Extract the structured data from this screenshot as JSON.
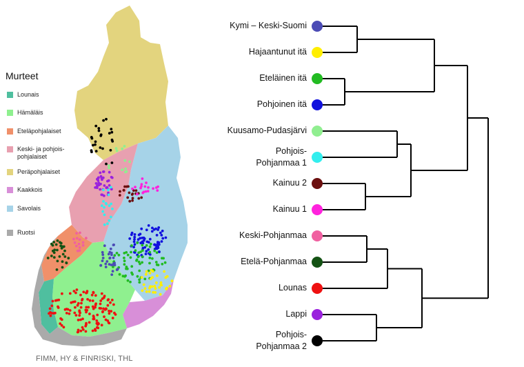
{
  "legend": {
    "title": "Murteet",
    "items": [
      {
        "label": "Lounais",
        "color": "#4fbf9f"
      },
      {
        "label": "Hämäläis",
        "color": "#8ff08f"
      },
      {
        "label": "Eteläpohjalaiset",
        "color": "#f0906a"
      },
      {
        "label": "Keski- ja pohjois-\npohjalaiset",
        "color": "#e8a0b0"
      },
      {
        "label": "Peräpohjalaiset",
        "color": "#e3d47e"
      },
      {
        "label": "Kaakkois",
        "color": "#d88fd8"
      },
      {
        "label": "Savolais",
        "color": "#a6d3e8"
      },
      {
        "label": "Ruotsi",
        "color": "#aaaaaa"
      }
    ]
  },
  "credit": "FIMM, HY & FINRISKI, THL",
  "dendrogram": {
    "leaves": [
      {
        "label": "Kymi – Keski-Suomi",
        "color": "#4b4bb5"
      },
      {
        "label": "Hajaantunut itä",
        "color": "#ffee00"
      },
      {
        "label": "Eteläinen itä",
        "color": "#22bb22"
      },
      {
        "label": "Pohjoinen itä",
        "color": "#1111dd"
      },
      {
        "label": "Kuusamo-Pudasjärvi",
        "color": "#90ee90"
      },
      {
        "label": "Pohjois-\nPohjanmaa 1",
        "color": "#33eeee"
      },
      {
        "label": "Kainuu 2",
        "color": "#6b0f0f"
      },
      {
        "label": "Kainuu 1",
        "color": "#ff22dd"
      },
      {
        "label": "Keski-Pohjanmaa",
        "color": "#f060a0"
      },
      {
        "label": "Etelä-Pohjanmaa",
        "color": "#145214"
      },
      {
        "label": "Lounas",
        "color": "#ee1111"
      },
      {
        "label": "Lappi",
        "color": "#9a22dd"
      },
      {
        "label": "Pohjois-\nPohjanmaa 2",
        "color": "#000000"
      }
    ]
  },
  "map": {
    "regions": [
      {
        "name": "Peräpohjalaiset",
        "color": "#e3d47e"
      },
      {
        "name": "Savolais",
        "color": "#a6d3e8"
      },
      {
        "name": "Keski- ja pohjoispohjalaiset",
        "color": "#e8a0b0"
      },
      {
        "name": "Eteläpohjalaiset",
        "color": "#f0906a"
      },
      {
        "name": "Hämäläis",
        "color": "#8ff08f"
      },
      {
        "name": "Lounais",
        "color": "#4fbf9f"
      },
      {
        "name": "Kaakkois",
        "color": "#d88fd8"
      },
      {
        "name": "Ruotsi",
        "color": "#aaaaaa"
      }
    ]
  }
}
